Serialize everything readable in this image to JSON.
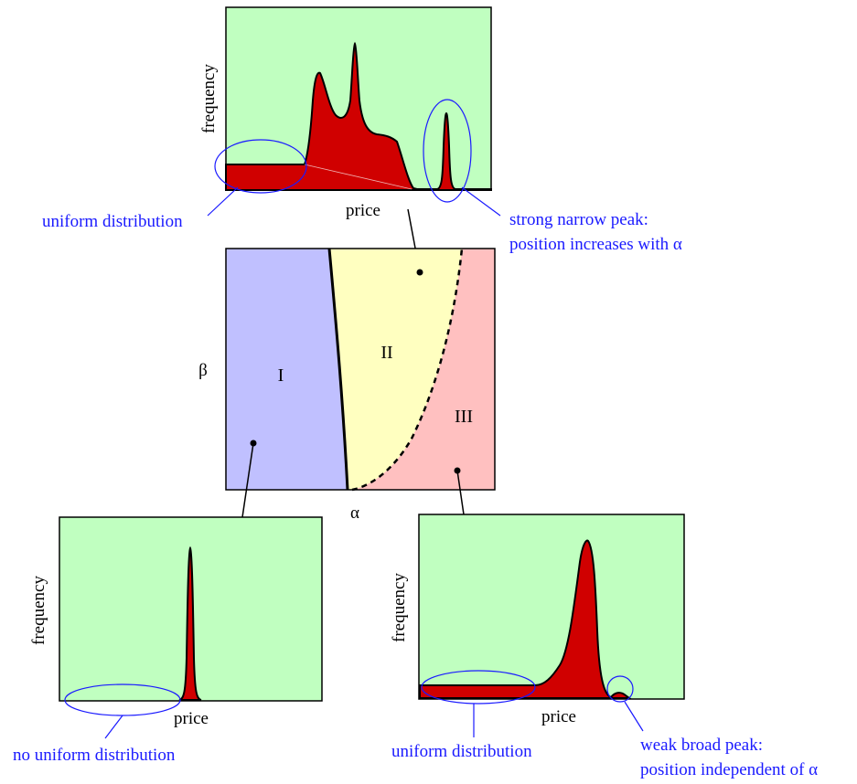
{
  "colors": {
    "plot_bg": "#c0ffc0",
    "fill_red": "#d00000",
    "region_I": "#c0c0ff",
    "region_II": "#ffffc0",
    "region_III": "#ffc0c0",
    "annotation_blue": "#1a1aff"
  },
  "top_plot": {
    "ylabel": "frequency",
    "xlabel": "price",
    "annotation_left": "uniform distribution",
    "annotation_right_line1": "strong narrow peak:",
    "annotation_right_line2": "position increases with α"
  },
  "phase_diagram": {
    "ylabel": "β",
    "xlabel": "α",
    "regions": [
      "I",
      "II",
      "III"
    ]
  },
  "bottom_left_plot": {
    "ylabel": "frequency",
    "xlabel": "price",
    "annotation": "no uniform distribution"
  },
  "bottom_right_plot": {
    "ylabel": "frequency",
    "xlabel": "price",
    "annotation_left": "uniform distribution",
    "annotation_right_line1": "weak broad peak:",
    "annotation_right_line2": "position independent of α"
  }
}
